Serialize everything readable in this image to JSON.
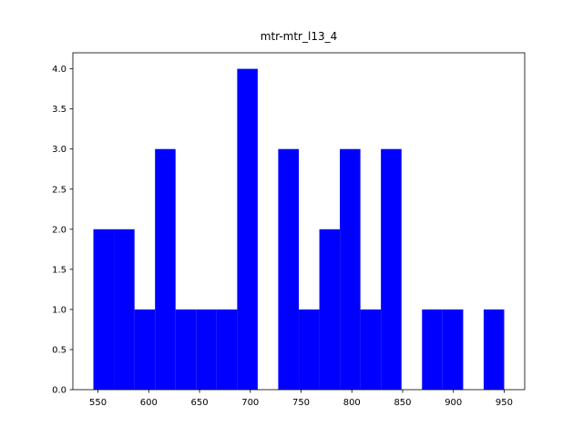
{
  "chart_data": {
    "type": "histogram",
    "title": "mtr-mtr_l13_4",
    "bins": [
      545.5,
      565.7,
      586.0,
      606.2,
      626.4,
      646.6,
      666.9,
      687.1,
      707.3,
      727.5,
      747.8,
      768.0,
      788.2,
      808.4,
      828.6,
      848.9,
      869.1,
      889.3,
      909.6,
      929.8,
      950.0
    ],
    "values": [
      2,
      2,
      1,
      3,
      1,
      1,
      1,
      4,
      0,
      3,
      1,
      2,
      3,
      1,
      3,
      0,
      1,
      1,
      0,
      1
    ],
    "color": "#0000ff",
    "xlim": [
      525.3,
      970.2
    ],
    "xticks": [
      550,
      600,
      650,
      700,
      750,
      800,
      850,
      900,
      950
    ],
    "ylim": [
      0,
      4.2
    ],
    "yticks": [
      {
        "value": 0,
        "label": "0.0"
      },
      {
        "value": 0.5,
        "label": "0.5"
      },
      {
        "value": 1,
        "label": "1.0"
      },
      {
        "value": 1.5,
        "label": "1.5"
      },
      {
        "value": 2,
        "label": "2.0"
      },
      {
        "value": 2.5,
        "label": "2.5"
      },
      {
        "value": 3,
        "label": "3.0"
      },
      {
        "value": 3.5,
        "label": "3.5"
      },
      {
        "value": 4,
        "label": "4.0"
      }
    ]
  }
}
